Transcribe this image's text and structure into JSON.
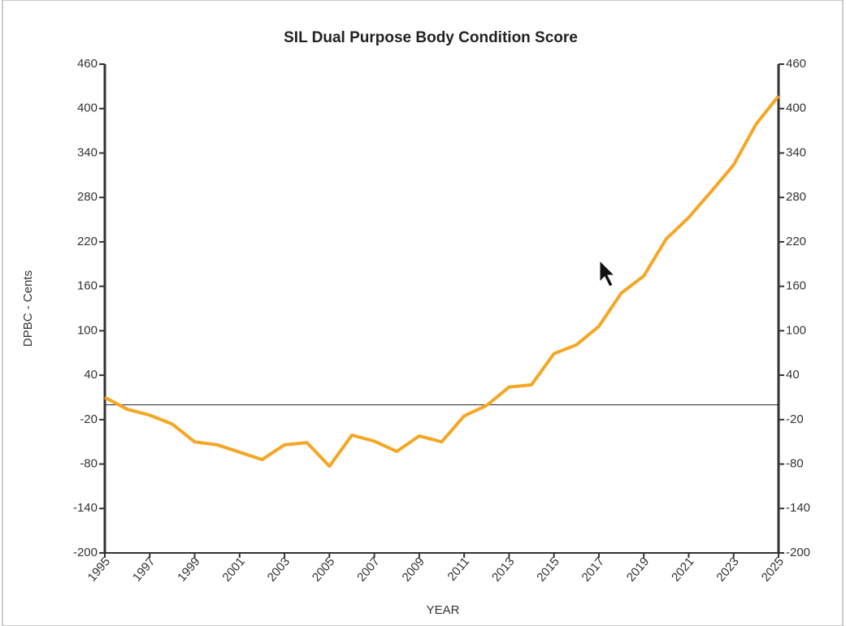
{
  "chart_data": {
    "type": "line",
    "title": "SIL Dual Purpose Body Condition Score",
    "x_label": "YEAR",
    "y_label": "DPBC - Cents",
    "x": [
      1995,
      1996,
      1997,
      1998,
      1999,
      2000,
      2001,
      2002,
      2003,
      2004,
      2005,
      2006,
      2007,
      2008,
      2009,
      2010,
      2011,
      2012,
      2013,
      2014,
      2015,
      2016,
      2017,
      2018,
      2019,
      2020,
      2021,
      2022,
      2023,
      2024,
      2025
    ],
    "series": [
      {
        "name": "DPBC",
        "color": "#f5a623",
        "values": [
          10,
          -6,
          -14,
          -26,
          -50,
          -54,
          -64,
          -74,
          -54,
          -51,
          -83,
          -41,
          -49,
          -63,
          -42,
          -50,
          -15,
          -1,
          24,
          27,
          69,
          81,
          106,
          151,
          174,
          224,
          253,
          288,
          324,
          379,
          417
        ]
      }
    ],
    "xlim": [
      1995,
      2025
    ],
    "xticks": [
      1995,
      1997,
      1999,
      2001,
      2003,
      2005,
      2007,
      2009,
      2011,
      2013,
      2015,
      2017,
      2019,
      2021,
      2023,
      2025
    ],
    "ylim": [
      -200,
      460
    ],
    "yticks": [
      -200,
      -140,
      -80,
      -20,
      40,
      100,
      160,
      220,
      280,
      340,
      400,
      460
    ],
    "zero_line": true,
    "legend": false
  }
}
